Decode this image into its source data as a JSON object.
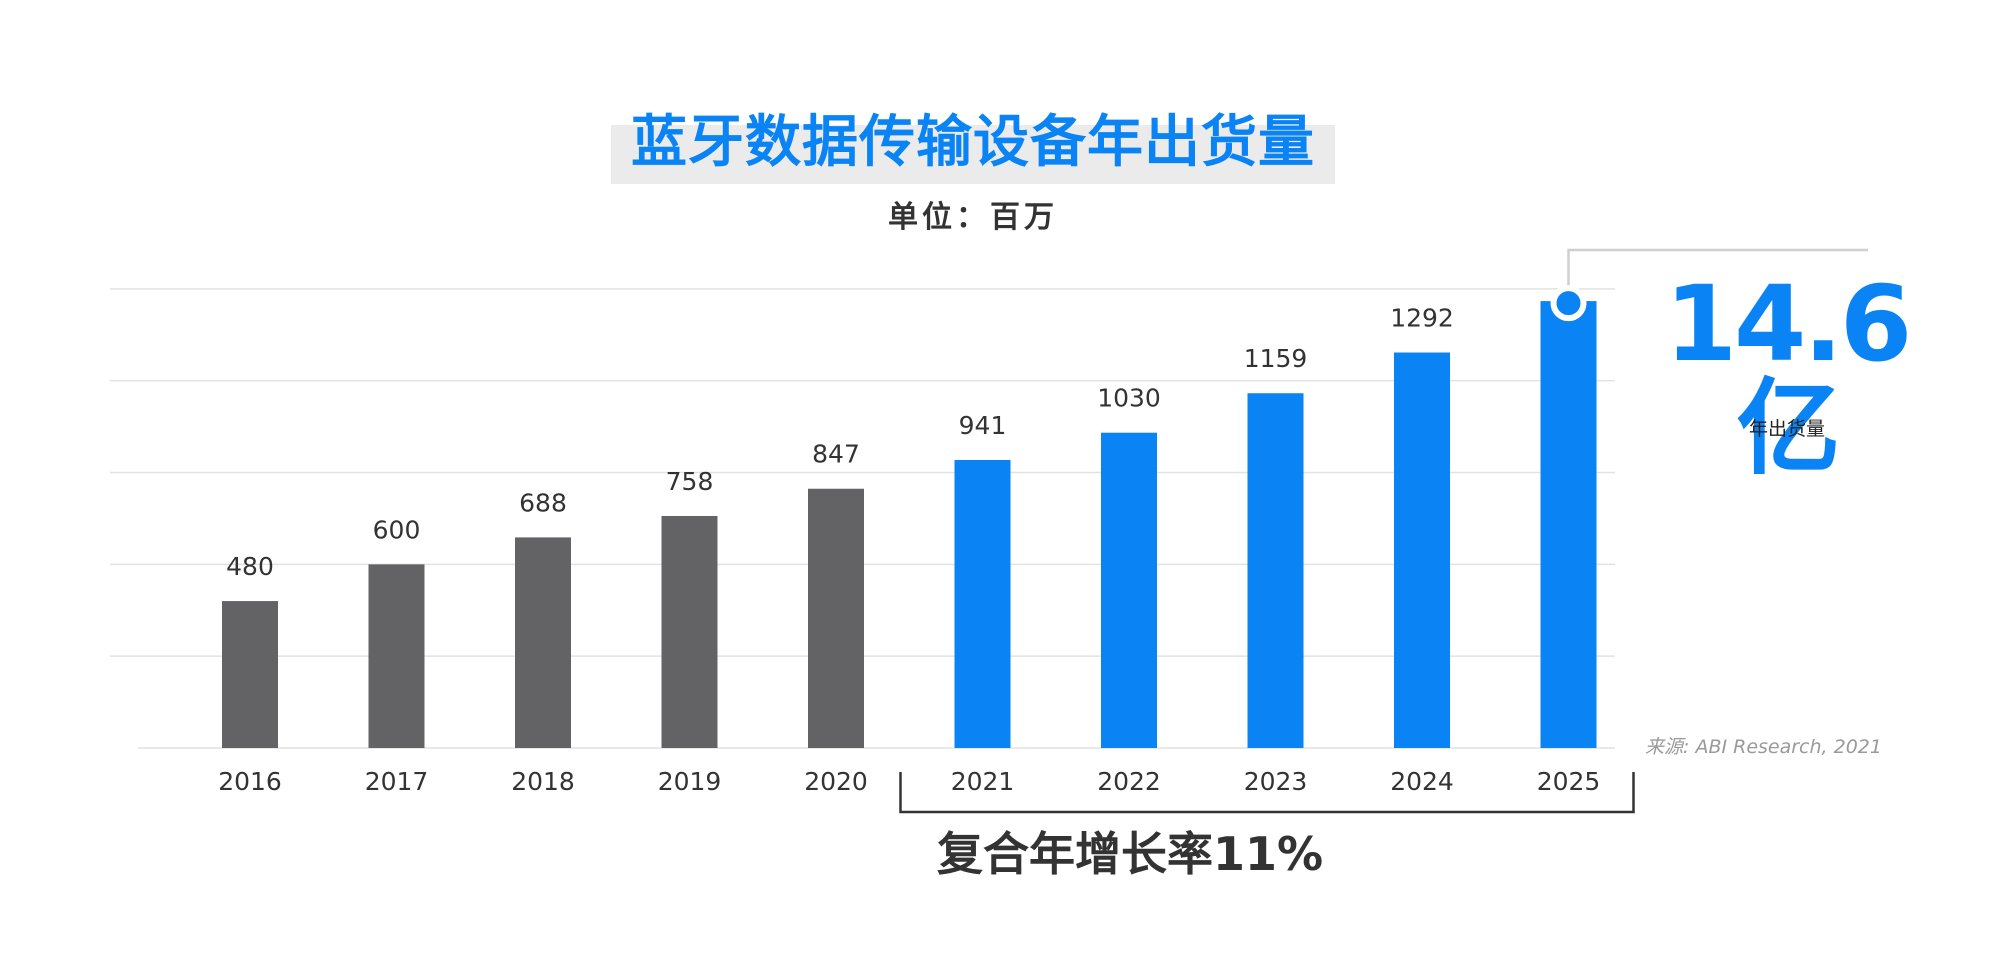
{
  "title": "蓝牙数据传输设备年出货量",
  "subtitle": "单位：百万",
  "highlight": {
    "value": "14.6亿",
    "caption": "年出货量"
  },
  "source": "来源: ABI Research, 2021",
  "cagr_label": "复合年增长率11%",
  "colors": {
    "historical": "#636366",
    "forecast": "#0a84f5",
    "grid": "#e2e2e2",
    "title": "#0a84f5"
  },
  "chart_data": {
    "type": "bar",
    "title": "蓝牙数据传输设备年出货量",
    "subtitle": "单位：百万",
    "xlabel": "",
    "ylabel": "",
    "categories": [
      "2016",
      "2017",
      "2018",
      "2019",
      "2020",
      "2021",
      "2022",
      "2023",
      "2024",
      "2025"
    ],
    "values": [
      480,
      600,
      688,
      758,
      847,
      941,
      1030,
      1159,
      1292,
      1460
    ],
    "data_labels": [
      "480",
      "600",
      "688",
      "758",
      "847",
      "941",
      "1030",
      "1159",
      "1292",
      ""
    ],
    "forecast_from_index": 5,
    "ylim": [
      0,
      1500
    ],
    "grid": true,
    "legend": "none"
  }
}
